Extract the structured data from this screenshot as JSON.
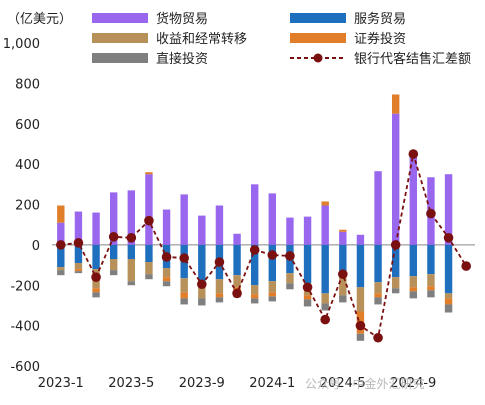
{
  "chart_data": {
    "type": "bar",
    "unit_label": "（亿美元）",
    "ylim": [
      -600,
      1000
    ],
    "yticks": [
      "1,000",
      "800",
      "600",
      "400",
      "200",
      "0",
      "-200",
      "-400",
      "-600"
    ],
    "xticks": [
      "2023-1",
      "2023-5",
      "2023-9",
      "2024-1",
      "2024-5",
      "2024-9"
    ],
    "categories": [
      "2023-1",
      "2023-2",
      "2023-3",
      "2023-4",
      "2023-5",
      "2023-6",
      "2023-7",
      "2023-8",
      "2023-9",
      "2023-10",
      "2023-11",
      "2023-12",
      "2024-1",
      "2024-2",
      "2024-3",
      "2024-4",
      "2024-5",
      "2024-6",
      "2024-7",
      "2024-8",
      "2024-9",
      "2024-10",
      "2024-11",
      "2024-12"
    ],
    "series": [
      {
        "name": "货物贸易",
        "color": "#9966ee",
        "kind": "bar",
        "values": [
          110,
          165,
          160,
          260,
          270,
          350,
          175,
          250,
          145,
          195,
          55,
          300,
          255,
          135,
          140,
          195,
          65,
          50,
          365,
          650,
          450,
          335,
          350,
          0
        ]
      },
      {
        "name": "服务贸易",
        "color": "#1f6fbf",
        "kind": "bar",
        "values": [
          -110,
          -90,
          -120,
          -70,
          -70,
          -85,
          -115,
          -165,
          -190,
          -170,
          -150,
          -200,
          -180,
          -140,
          -190,
          -240,
          -160,
          -210,
          -185,
          -160,
          -155,
          -145,
          -240,
          0
        ]
      },
      {
        "name": "收益和经常转移",
        "color": "#b8905a",
        "kind": "bar",
        "values": [
          -15,
          -30,
          -95,
          -55,
          -110,
          -60,
          -45,
          -70,
          -75,
          -70,
          -60,
          -45,
          -55,
          -50,
          -60,
          -50,
          -90,
          -120,
          -55,
          -55,
          -55,
          -60,
          -25,
          0
        ]
      },
      {
        "name": "证券投资",
        "color": "#e07e2a",
        "kind": "bar",
        "values": [
          85,
          -10,
          -20,
          0,
          0,
          10,
          -20,
          -30,
          0,
          -20,
          -25,
          -20,
          -20,
          0,
          -20,
          20,
          10,
          -110,
          -20,
          95,
          -20,
          -20,
          -30,
          0
        ]
      },
      {
        "name": "直接投资",
        "color": "#7f7f7f",
        "kind": "bar",
        "values": [
          -25,
          -10,
          -25,
          -25,
          -20,
          -25,
          -25,
          -30,
          -35,
          -25,
          -25,
          -25,
          -25,
          -30,
          -35,
          -35,
          -35,
          -35,
          -35,
          -25,
          -35,
          -35,
          -40,
          0
        ]
      },
      {
        "name": "银行代客结售汇差额",
        "color": "#7a1010",
        "kind": "line",
        "values": [
          0,
          10,
          -160,
          40,
          35,
          120,
          -60,
          -65,
          -195,
          -85,
          -240,
          -25,
          -50,
          -55,
          -210,
          -370,
          -145,
          -400,
          -460,
          0,
          450,
          155,
          35,
          -105
        ]
      }
    ]
  },
  "legend": {
    "goods": "货物贸易",
    "services": "服务贸易",
    "income": "收益和经常转移",
    "securities": "证券投资",
    "fdi": "直接投资",
    "fx": "银行代客结售汇差额"
  },
  "colors": {
    "goods": "#9966ee",
    "services": "#1f6fbf",
    "income": "#b8905a",
    "securities": "#e07e2a",
    "fdi": "#7f7f7f",
    "fx": "#7a1010"
  },
  "watermark": "公众号 · 中金外汇研究"
}
